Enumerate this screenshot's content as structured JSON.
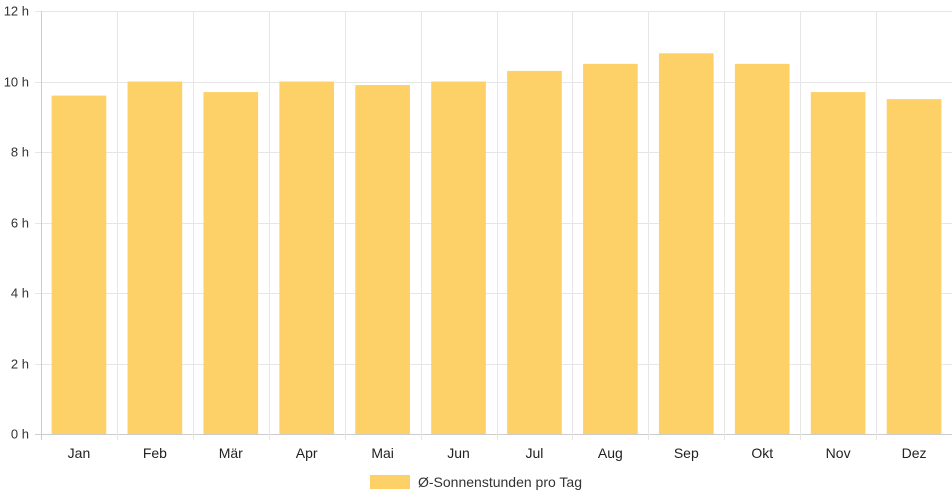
{
  "chart_data": {
    "type": "bar",
    "categories": [
      "Jan",
      "Feb",
      "Mär",
      "Apr",
      "Mai",
      "Jun",
      "Jul",
      "Aug",
      "Sep",
      "Okt",
      "Nov",
      "Dez"
    ],
    "series": [
      {
        "name": "Ø-Sonnenstunden pro Tag",
        "values": [
          9.6,
          10.0,
          9.7,
          10.0,
          9.9,
          10.0,
          10.3,
          10.5,
          10.8,
          10.5,
          9.7,
          9.5
        ],
        "color": "#fed068"
      }
    ],
    "yticks": [
      "0 h",
      "2 h",
      "4 h",
      "6 h",
      "8 h",
      "10 h",
      "12 h"
    ],
    "ylim": [
      0,
      12
    ],
    "grid": true,
    "legend": "bottom"
  }
}
